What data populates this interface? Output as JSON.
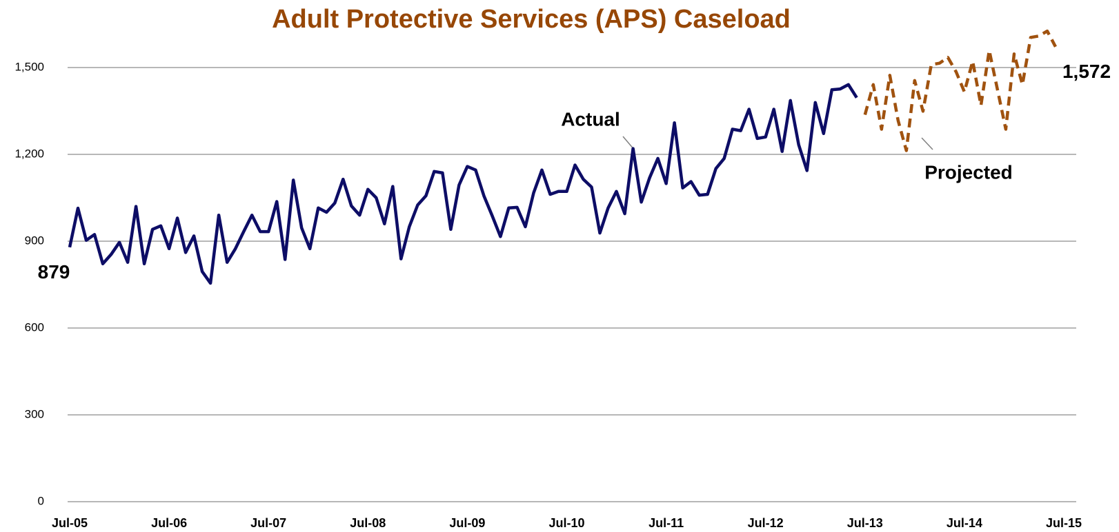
{
  "chart_data": {
    "type": "line",
    "title": "Adult Protective Services (APS) Caseload",
    "categories": [
      "Jul-05",
      null,
      null,
      null,
      null,
      null,
      null,
      null,
      null,
      null,
      null,
      null,
      "Jul-06",
      null,
      null,
      null,
      null,
      null,
      null,
      null,
      null,
      null,
      null,
      null,
      "Jul-07",
      null,
      null,
      null,
      null,
      null,
      null,
      null,
      null,
      null,
      null,
      null,
      "Jul-08",
      null,
      null,
      null,
      null,
      null,
      null,
      null,
      null,
      null,
      null,
      null,
      "Jul-09",
      null,
      null,
      null,
      null,
      null,
      null,
      null,
      null,
      null,
      null,
      null,
      "Jul-10",
      null,
      null,
      null,
      null,
      null,
      null,
      null,
      null,
      null,
      null,
      null,
      "Jul-11",
      null,
      null,
      null,
      null,
      null,
      null,
      null,
      null,
      null,
      null,
      null,
      "Jul-12",
      null,
      null,
      null,
      null,
      null,
      null,
      null,
      null,
      null,
      null,
      null,
      "Jul-13",
      null,
      null,
      null,
      null,
      null,
      null,
      null,
      null,
      null,
      null,
      null,
      "Jul-14",
      null,
      null,
      null,
      null,
      null,
      null,
      null,
      null,
      null,
      null,
      null,
      "Jul-15"
    ],
    "series": [
      {
        "name": "Actual",
        "color": "#0d0d66",
        "style": "solid",
        "values": [
          879,
          1014,
          903,
          923,
          822,
          854,
          896,
          827,
          1020,
          822,
          941,
          953,
          874,
          980,
          861,
          918,
          795,
          755,
          990,
          827,
          874,
          933,
          990,
          933,
          933,
          1037,
          837,
          1111,
          946,
          874,
          1015,
          1000,
          1032,
          1114,
          1022,
          990,
          1079,
          1050,
          960,
          1089,
          839,
          950,
          1025,
          1057,
          1141,
          1136,
          941,
          1094,
          1158,
          1146,
          1057,
          988,
          916,
          1015,
          1017,
          950,
          1067,
          1146,
          1062,
          1072,
          1072,
          1163,
          1114,
          1087,
          928,
          1015,
          1072,
          995,
          1220,
          1035,
          1119,
          1186,
          1099,
          1309,
          1084,
          1106,
          1059,
          1062,
          1151,
          1186,
          1287,
          1282,
          1356,
          1255,
          1260,
          1356,
          1210,
          1386,
          1233,
          1144,
          1379,
          1272,
          1423,
          1426,
          1441,
          1396,
          null,
          null,
          null,
          null,
          null,
          null,
          null,
          null,
          null,
          null,
          null,
          null,
          null,
          null,
          null,
          null,
          null,
          null,
          null,
          null,
          null,
          null,
          null,
          null,
          null
        ],
        "value_labels": {
          "0": "879"
        }
      },
      {
        "name": "Projected",
        "color": "#a0520f",
        "style": "dashed",
        "values": [
          null,
          null,
          null,
          null,
          null,
          null,
          null,
          null,
          null,
          null,
          null,
          null,
          null,
          null,
          null,
          null,
          null,
          null,
          null,
          null,
          null,
          null,
          null,
          null,
          null,
          null,
          null,
          null,
          null,
          null,
          null,
          null,
          null,
          null,
          null,
          null,
          null,
          null,
          null,
          null,
          null,
          null,
          null,
          null,
          null,
          null,
          null,
          null,
          null,
          null,
          null,
          null,
          null,
          null,
          null,
          null,
          null,
          null,
          null,
          null,
          null,
          null,
          null,
          null,
          null,
          null,
          null,
          null,
          null,
          null,
          null,
          null,
          null,
          null,
          null,
          null,
          null,
          null,
          null,
          null,
          null,
          null,
          null,
          null,
          null,
          null,
          null,
          null,
          null,
          null,
          null,
          null,
          null,
          null,
          null,
          null,
          1337,
          1441,
          1287,
          1473,
          1317,
          1213,
          1455,
          1349,
          1510,
          1515,
          1535,
          1485,
          1416,
          1522,
          1369,
          1559,
          1423,
          1287,
          1547,
          1441,
          1604,
          1609,
          1626,
          1572,
          null
        ],
        "value_labels": {
          "119": "1,572"
        }
      }
    ],
    "ylim": [
      0,
      1650
    ],
    "yticks": [
      0,
      300,
      600,
      900,
      {
        "value": 1200,
        "label": "1,200"
      },
      {
        "value": 1500,
        "label": "1,500"
      }
    ],
    "grid": true
  }
}
